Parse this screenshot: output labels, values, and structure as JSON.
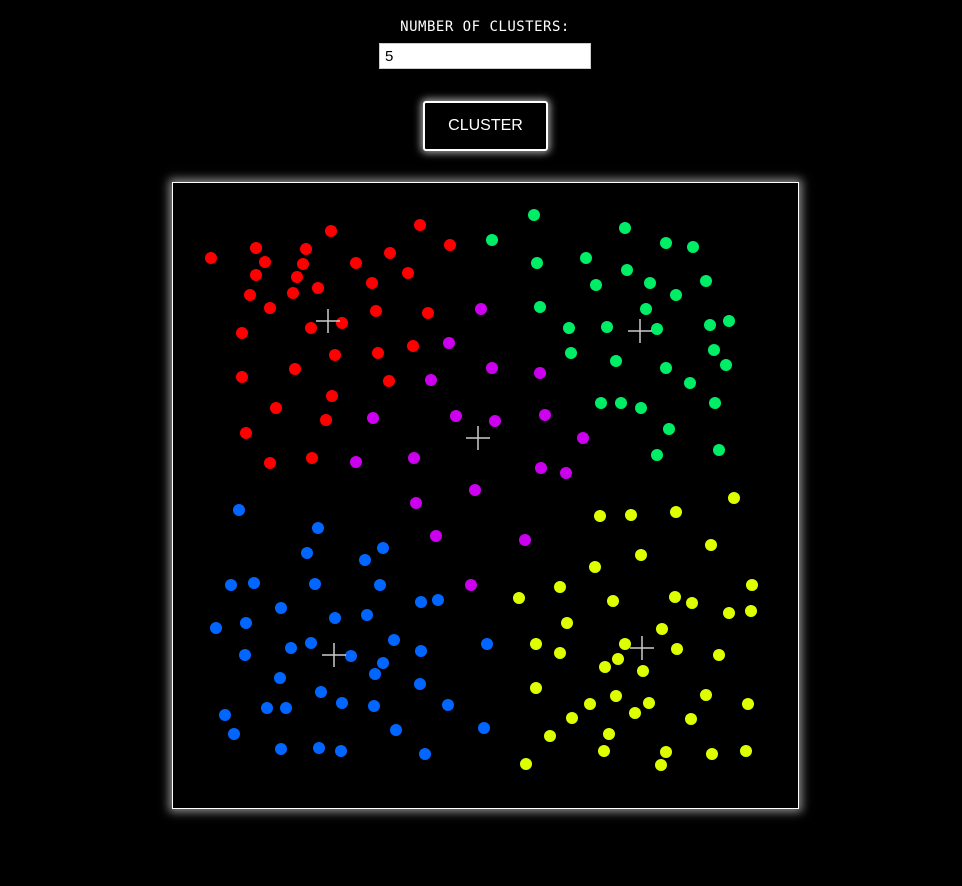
{
  "controls": {
    "clusters_label": "NUMBER OF CLUSTERS:",
    "clusters_value": "5",
    "cluster_button_label": "CLUSTER"
  },
  "chart_data": {
    "type": "scatter",
    "xlim": [
      0,
      625
    ],
    "ylim": [
      0,
      625
    ],
    "grid": false,
    "legend": "none",
    "series": [
      {
        "color": "#ff0000",
        "points": [
          [
            38,
            75
          ],
          [
            83,
            65
          ],
          [
            92,
            79
          ],
          [
            83,
            92
          ],
          [
            77,
            112
          ],
          [
            97,
            125
          ],
          [
            120,
            110
          ],
          [
            133,
            66
          ],
          [
            130,
            81
          ],
          [
            124,
            94
          ],
          [
            145,
            105
          ],
          [
            158,
            48
          ],
          [
            183,
            80
          ],
          [
            199,
            100
          ],
          [
            217,
            70
          ],
          [
            235,
            90
          ],
          [
            247,
            42
          ],
          [
            277,
            62
          ],
          [
            69,
            150
          ],
          [
            138,
            145
          ],
          [
            169,
            140
          ],
          [
            203,
            128
          ],
          [
            255,
            130
          ],
          [
            240,
            163
          ],
          [
            162,
            172
          ],
          [
            205,
            170
          ],
          [
            69,
            194
          ],
          [
            122,
            186
          ],
          [
            216,
            198
          ],
          [
            159,
            213
          ],
          [
            103,
            225
          ],
          [
            153,
            237
          ],
          [
            73,
            250
          ],
          [
            97,
            280
          ],
          [
            139,
            275
          ]
        ]
      },
      {
        "color": "#00ee66",
        "points": [
          [
            361,
            32
          ],
          [
            452,
            45
          ],
          [
            319,
            57
          ],
          [
            364,
            80
          ],
          [
            413,
            75
          ],
          [
            423,
            102
          ],
          [
            454,
            87
          ],
          [
            477,
            100
          ],
          [
            493,
            60
          ],
          [
            520,
            64
          ],
          [
            503,
            112
          ],
          [
            533,
            98
          ],
          [
            367,
            124
          ],
          [
            396,
            145
          ],
          [
            434,
            144
          ],
          [
            473,
            126
          ],
          [
            484,
            146
          ],
          [
            537,
            142
          ],
          [
            556,
            138
          ],
          [
            398,
            170
          ],
          [
            443,
            178
          ],
          [
            541,
            167
          ],
          [
            553,
            182
          ],
          [
            493,
            185
          ],
          [
            517,
            200
          ],
          [
            428,
            220
          ],
          [
            448,
            220
          ],
          [
            468,
            225
          ],
          [
            542,
            220
          ],
          [
            496,
            246
          ],
          [
            484,
            272
          ],
          [
            546,
            267
          ]
        ]
      },
      {
        "color": "#cc00ee",
        "points": [
          [
            308,
            126
          ],
          [
            276,
            160
          ],
          [
            258,
            197
          ],
          [
            319,
            185
          ],
          [
            367,
            190
          ],
          [
            200,
            235
          ],
          [
            283,
            233
          ],
          [
            322,
            238
          ],
          [
            372,
            232
          ],
          [
            410,
            255
          ],
          [
            241,
            275
          ],
          [
            183,
            279
          ],
          [
            368,
            285
          ],
          [
            393,
            290
          ],
          [
            302,
            307
          ],
          [
            243,
            320
          ],
          [
            263,
            353
          ],
          [
            352,
            357
          ],
          [
            298,
            402
          ]
        ]
      },
      {
        "color": "#0066ff",
        "points": [
          [
            66,
            327
          ],
          [
            145,
            345
          ],
          [
            134,
            370
          ],
          [
            192,
            377
          ],
          [
            210,
            365
          ],
          [
            58,
            402
          ],
          [
            81,
            400
          ],
          [
            142,
            401
          ],
          [
            207,
            402
          ],
          [
            108,
            425
          ],
          [
            162,
            435
          ],
          [
            194,
            432
          ],
          [
            248,
            419
          ],
          [
            265,
            417
          ],
          [
            43,
            445
          ],
          [
            73,
            440
          ],
          [
            118,
            465
          ],
          [
            138,
            460
          ],
          [
            178,
            473
          ],
          [
            72,
            472
          ],
          [
            221,
            457
          ],
          [
            248,
            468
          ],
          [
            210,
            480
          ],
          [
            202,
            491
          ],
          [
            107,
            495
          ],
          [
            148,
            509
          ],
          [
            247,
            501
          ],
          [
            52,
            532
          ],
          [
            61,
            551
          ],
          [
            94,
            525
          ],
          [
            113,
            525
          ],
          [
            169,
            520
          ],
          [
            201,
            523
          ],
          [
            275,
            522
          ],
          [
            223,
            547
          ],
          [
            108,
            566
          ],
          [
            146,
            565
          ],
          [
            168,
            568
          ],
          [
            252,
            571
          ],
          [
            314,
            461
          ],
          [
            311,
            545
          ]
        ]
      },
      {
        "color": "#ddff00",
        "points": [
          [
            561,
            315
          ],
          [
            427,
            333
          ],
          [
            458,
            332
          ],
          [
            503,
            329
          ],
          [
            538,
            362
          ],
          [
            468,
            372
          ],
          [
            422,
            384
          ],
          [
            579,
            402
          ],
          [
            387,
            404
          ],
          [
            346,
            415
          ],
          [
            440,
            418
          ],
          [
            502,
            414
          ],
          [
            519,
            420
          ],
          [
            556,
            430
          ],
          [
            578,
            428
          ],
          [
            394,
            440
          ],
          [
            489,
            446
          ],
          [
            363,
            461
          ],
          [
            387,
            470
          ],
          [
            452,
            461
          ],
          [
            504,
            466
          ],
          [
            546,
            472
          ],
          [
            445,
            476
          ],
          [
            432,
            484
          ],
          [
            470,
            488
          ],
          [
            363,
            505
          ],
          [
            443,
            513
          ],
          [
            417,
            521
          ],
          [
            476,
            520
          ],
          [
            533,
            512
          ],
          [
            575,
            521
          ],
          [
            399,
            535
          ],
          [
            462,
            530
          ],
          [
            518,
            536
          ],
          [
            377,
            553
          ],
          [
            436,
            551
          ],
          [
            353,
            581
          ],
          [
            431,
            568
          ],
          [
            493,
            569
          ],
          [
            488,
            582
          ],
          [
            539,
            571
          ],
          [
            573,
            568
          ]
        ]
      }
    ],
    "centroids": [
      [
        155,
        138
      ],
      [
        467,
        148
      ],
      [
        305,
        255
      ],
      [
        161,
        472
      ],
      [
        469,
        465
      ]
    ]
  }
}
